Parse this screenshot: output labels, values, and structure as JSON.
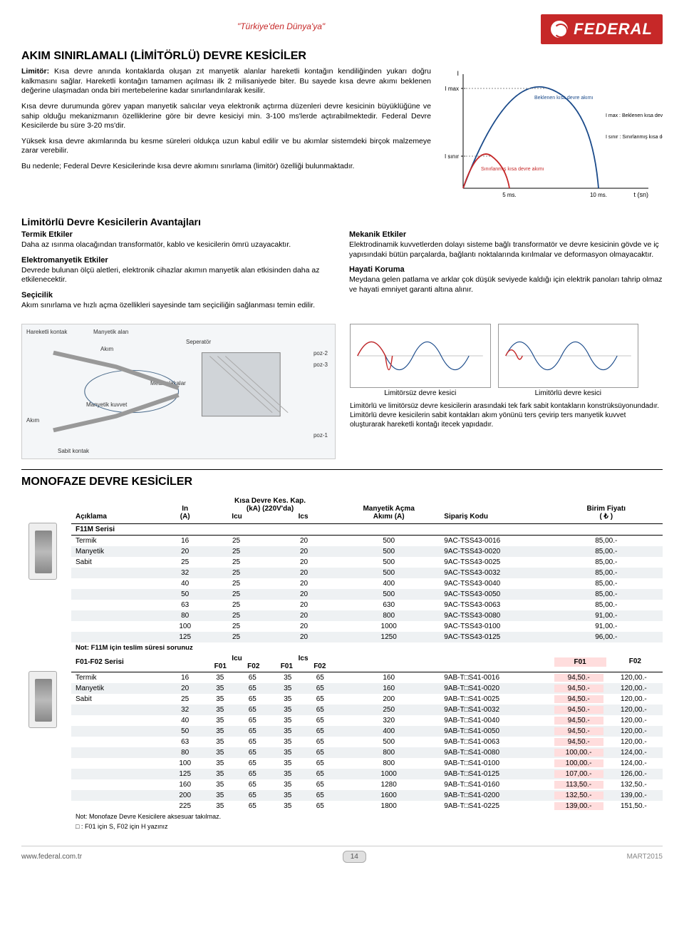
{
  "brand": {
    "tagline": "\"Türkiye'den Dünya'ya\"",
    "name": "FEDERAL"
  },
  "title": "AKIM SINIRLAMALI (LİMİTÖRLÜ) DEVRE KESİCİLER",
  "intro": {
    "p1_label": "Limitör:",
    "p1": " Kısa devre anında kontaklarda oluşan zıt manyetik alanlar hareketli kontağın kendiliğinden yukarı doğru kalkmasını sağlar. Hareketli kontağın tamamen açılması ilk 2 milisaniyede biter. Bu sayede kısa devre akımı beklenen değerine ulaşmadan onda biri mertebelerine kadar sınırlandırılarak kesilir.",
    "p2": "Kısa devre durumunda görev yapan manyetik salıcılar veya elektronik açtırma düzenleri devre kesicinin büyüklüğüne ve sahip olduğu mekanizmanın özelliklerine göre bir devre kesiciyi min. 3-100 ms'lerde açtırabilmektedir. Federal Devre Kesicilerde bu süre 3-20 ms'dir.",
    "p3": "Yüksek kısa devre akımlarında bu kesme süreleri oldukça uzun kabul edilir ve bu akımlar sistemdeki birçok malzemeye zarar verebilir.",
    "p4": "Bu nedenle; Federal Devre Kesicilerinde kısa devre akımını sınırlama (limitör) özelliği bulunmaktadır."
  },
  "chart": {
    "y_label": "I",
    "y_imax": "I max",
    "y_isinir": "I sınır",
    "curve1_label": "Beklenen kısa\ndevre akımı",
    "curve2_label": "Sınırlanmış kısa\ndevre akımı",
    "imax_note": "I max : Beklenen kısa devre\nakımının tepe değeri.",
    "isinir_note": "I sınır : Sınırlanmış kısa devre\nakımının tepe değeri.",
    "x_5ms": "5 ms.",
    "x_10ms": "10 ms.",
    "x_label": "t (sn)",
    "colors": {
      "curve1": "#1a4a8a",
      "curve2": "#c62828",
      "grid": "#888"
    }
  },
  "adv_title": "Limitörlü Devre Kesicilerin Avantajları",
  "adv": {
    "left": [
      {
        "h": "Termik Etkiler",
        "t": "Daha az ısınma olacağından transformatör, kablo ve kesicilerin ömrü uzayacaktır."
      },
      {
        "h": "Elektromanyetik Etkiler",
        "t": "Devrede bulunan ölçü aletleri, elektronik cihazlar akımın manyetik alan etkisinden daha az etkilenecektir."
      },
      {
        "h": "Seçicilik",
        "t": "Akım sınırlama ve hızlı açma özellikleri sayesinde tam seçiciliğin sağlanması temin edilir."
      }
    ],
    "right": [
      {
        "h": "Mekanik Etkiler",
        "t": "Elektrodinamik kuvvetlerden dolayı sisteme bağlı transformatör ve devre kesicinin gövde ve iç yapısındaki bütün parçalarda, bağlantı noktalarında kırılmalar ve deformasyon olmayacaktır."
      },
      {
        "h": "Hayati Koruma",
        "t": "Meydana gelen patlama ve arklar çok düşük seviyede kaldığı için elektrik panoları tahrip olmaz ve hayati emniyet garanti altına alınır."
      }
    ]
  },
  "diagram_labels": {
    "hareketli": "Hareketli\nkontak",
    "manyetik_alan": "Manyetik alan",
    "akim": "Akım",
    "seperator": "Seperatör",
    "poz2": "poz-2",
    "poz3": "poz-3",
    "metal": "Metal\nplakalar",
    "manyetik_kuvvet": "Manyetik\nkuvvet",
    "akim2": "Akım",
    "poz1": "poz-1",
    "sabit": "Sabit kontak"
  },
  "waves": {
    "cap1": "Limitörsüz devre kesici",
    "cap2": "Limitörlü devre kesici",
    "note": "Limitörlü ve limitörsüz devre kesicilerin arasındaki tek fark sabit kontakların konstrüksüyonundadır.\nLimitörlü devre kesicilerin sabit kontakları akım yönünü ters çevirip ters manyetik kuvvet oluşturarak hareketli kontağı itecek yapıdadır."
  },
  "table_title": "MONOFAZE DEVRE KESİCİLER",
  "headers": {
    "aciklama": "Açıklama",
    "in": "In\n(A)",
    "kisa": "Kısa Devre Kes. Kap.\n(kA) (220V'da)",
    "icu": "Icu",
    "ics": "Ics",
    "manyetik": "Manyetik Açma\nAkımı (A)",
    "siparis": "Sipariş Kodu",
    "birim": "Birim Fiyatı\n( ₺ )"
  },
  "series1": {
    "name": "F11M Serisi",
    "desc": [
      "Termik",
      "Manyetik",
      "Sabit"
    ],
    "rows": [
      {
        "in": "16",
        "icu": "25",
        "ics": "20",
        "ma": "500",
        "kod": "9AC-TSS43-0016",
        "f": "85,00.-"
      },
      {
        "in": "20",
        "icu": "25",
        "ics": "20",
        "ma": "500",
        "kod": "9AC-TSS43-0020",
        "f": "85,00.-"
      },
      {
        "in": "25",
        "icu": "25",
        "ics": "20",
        "ma": "500",
        "kod": "9AC-TSS43-0025",
        "f": "85,00.-"
      },
      {
        "in": "32",
        "icu": "25",
        "ics": "20",
        "ma": "500",
        "kod": "9AC-TSS43-0032",
        "f": "85,00.-"
      },
      {
        "in": "40",
        "icu": "25",
        "ics": "20",
        "ma": "400",
        "kod": "9AC-TSS43-0040",
        "f": "85,00.-"
      },
      {
        "in": "50",
        "icu": "25",
        "ics": "20",
        "ma": "500",
        "kod": "9AC-TSS43-0050",
        "f": "85,00.-"
      },
      {
        "in": "63",
        "icu": "25",
        "ics": "20",
        "ma": "630",
        "kod": "9AC-TSS43-0063",
        "f": "85,00.-"
      },
      {
        "in": "80",
        "icu": "25",
        "ics": "20",
        "ma": "800",
        "kod": "9AC-TSS43-0080",
        "f": "91,00.-"
      },
      {
        "in": "100",
        "icu": "25",
        "ics": "20",
        "ma": "1000",
        "kod": "9AC-TSS43-0100",
        "f": "91,00.-"
      },
      {
        "in": "125",
        "icu": "25",
        "ics": "20",
        "ma": "1250",
        "kod": "9AC-TSS43-0125",
        "f": "96,00.-"
      }
    ],
    "note": "Not: F11M için teslim süresi sorunuz"
  },
  "series2": {
    "name": "F01-F02 Serisi",
    "f01": "F01",
    "f02": "F02",
    "desc": [
      "Termik",
      "Manyetik",
      "Sabit"
    ],
    "rows": [
      {
        "in": "16",
        "icu1": "35",
        "icu2": "65",
        "ics1": "35",
        "ics2": "65",
        "ma": "160",
        "kod": "9AB-T□S41-0016",
        "f1": "94,50.-",
        "f2": "120,00.-"
      },
      {
        "in": "20",
        "icu1": "35",
        "icu2": "65",
        "ics1": "35",
        "ics2": "65",
        "ma": "160",
        "kod": "9AB-T□S41-0020",
        "f1": "94,50.-",
        "f2": "120,00.-"
      },
      {
        "in": "25",
        "icu1": "35",
        "icu2": "65",
        "ics1": "35",
        "ics2": "65",
        "ma": "200",
        "kod": "9AB-T□S41-0025",
        "f1": "94,50.-",
        "f2": "120,00.-"
      },
      {
        "in": "32",
        "icu1": "35",
        "icu2": "65",
        "ics1": "35",
        "ics2": "65",
        "ma": "250",
        "kod": "9AB-T□S41-0032",
        "f1": "94,50.-",
        "f2": "120,00.-"
      },
      {
        "in": "40",
        "icu1": "35",
        "icu2": "65",
        "ics1": "35",
        "ics2": "65",
        "ma": "320",
        "kod": "9AB-T□S41-0040",
        "f1": "94,50.-",
        "f2": "120,00.-"
      },
      {
        "in": "50",
        "icu1": "35",
        "icu2": "65",
        "ics1": "35",
        "ics2": "65",
        "ma": "400",
        "kod": "9AB-T□S41-0050",
        "f1": "94,50.-",
        "f2": "120,00.-"
      },
      {
        "in": "63",
        "icu1": "35",
        "icu2": "65",
        "ics1": "35",
        "ics2": "65",
        "ma": "500",
        "kod": "9AB-T□S41-0063",
        "f1": "94,50.-",
        "f2": "120,00.-"
      },
      {
        "in": "80",
        "icu1": "35",
        "icu2": "65",
        "ics1": "35",
        "ics2": "65",
        "ma": "800",
        "kod": "9AB-T□S41-0080",
        "f1": "100,00.-",
        "f2": "124,00.-"
      },
      {
        "in": "100",
        "icu1": "35",
        "icu2": "65",
        "ics1": "35",
        "ics2": "65",
        "ma": "800",
        "kod": "9AB-T□S41-0100",
        "f1": "100,00.-",
        "f2": "124,00.-"
      },
      {
        "in": "125",
        "icu1": "35",
        "icu2": "65",
        "ics1": "35",
        "ics2": "65",
        "ma": "1000",
        "kod": "9AB-T□S41-0125",
        "f1": "107,00.-",
        "f2": "126,00.-"
      },
      {
        "in": "160",
        "icu1": "35",
        "icu2": "65",
        "ics1": "35",
        "ics2": "65",
        "ma": "1280",
        "kod": "9AB-T□S41-0160",
        "f1": "113,50.-",
        "f2": "132,50.-"
      },
      {
        "in": "200",
        "icu1": "35",
        "icu2": "65",
        "ics1": "35",
        "ics2": "65",
        "ma": "1600",
        "kod": "9AB-T□S41-0200",
        "f1": "132,50.-",
        "f2": "139,00.-"
      },
      {
        "in": "225",
        "icu1": "35",
        "icu2": "65",
        "ics1": "35",
        "ics2": "65",
        "ma": "1800",
        "kod": "9AB-T□S41-0225",
        "f1": "139,00.-",
        "f2": "151,50.-"
      }
    ],
    "note1": "Not: Monofaze Devre Kesicilere aksesuar takılmaz.",
    "note2": "□ : F01 için S, F02 için H yazınız"
  },
  "footer": {
    "url": "www.federal.com.tr",
    "page": "14",
    "month": "MART",
    "year": "2015"
  }
}
